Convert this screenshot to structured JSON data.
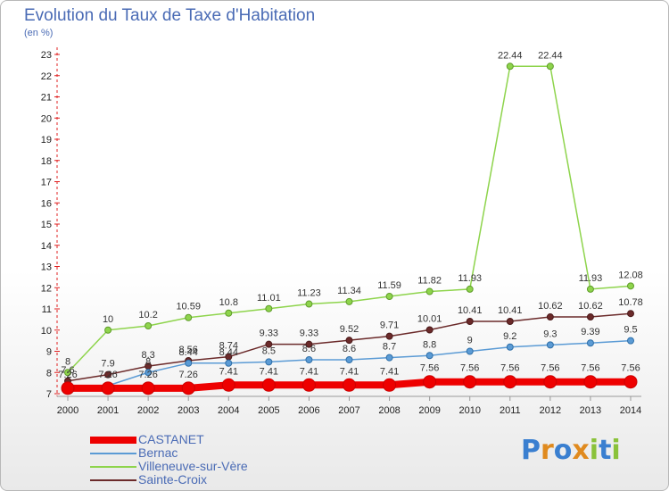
{
  "title": "Evolution du Taux de Taxe d'Habitation",
  "unit": "(en %)",
  "logo": {
    "letters": [
      "P",
      "r",
      "o",
      "x",
      "i",
      "t",
      "i"
    ],
    "colors": [
      "#3a7fd0",
      "#e08a1e",
      "#3a7fd0",
      "#e08a1e",
      "#8ac23a",
      "#3a7fd0",
      "#8ac23a"
    ]
  },
  "chart_data": {
    "type": "line",
    "title": "Evolution du Taux de Taxe d'Habitation",
    "ylabel": "(en %)",
    "xlabel": "",
    "x": [
      "2000",
      "2001",
      "2002",
      "2003",
      "2004",
      "2005",
      "2006",
      "2007",
      "2008",
      "2009",
      "2010",
      "2011",
      "2012",
      "2013",
      "2014"
    ],
    "ylim": [
      7,
      23
    ],
    "yticks": [
      "7",
      "8",
      "9",
      "10",
      "11",
      "12",
      "13",
      "14",
      "15",
      "16",
      "17",
      "18",
      "19",
      "20",
      "21",
      "22",
      "23"
    ],
    "legend_position": "bottom-left",
    "grid": false,
    "series": [
      {
        "name": "CASTANET",
        "color": "#ee0000",
        "values": [
          7.26,
          7.26,
          7.26,
          7.26,
          7.41,
          7.41,
          7.41,
          7.41,
          7.41,
          7.56,
          7.56,
          7.56,
          7.56,
          7.56,
          7.56
        ],
        "labels": [
          "7.26",
          "7.26",
          "7.26",
          "7.26",
          "7.41",
          "7.41",
          "7.41",
          "7.41",
          "7.41",
          "7.56",
          "7.56",
          "7.56",
          "7.56",
          "7.56",
          "7.56"
        ]
      },
      {
        "name": "Bernac",
        "color": "#5b9bd5",
        "values": [
          7.38,
          7.38,
          8.0,
          8.44,
          8.44,
          8.5,
          8.6,
          8.6,
          8.7,
          8.8,
          9.0,
          9.2,
          9.3,
          9.39,
          9.5
        ],
        "labels": [
          "",
          "",
          "8",
          "8.44",
          "8.44",
          "8.5",
          "8.6",
          "8.6",
          "8.7",
          "8.8",
          "9",
          "9.2",
          "9.3",
          "9.39",
          "9.5"
        ]
      },
      {
        "name": "Villeneuve-sur-Vère",
        "color": "#8ed44c",
        "values": [
          8.0,
          10.0,
          10.2,
          10.59,
          10.8,
          11.01,
          11.23,
          11.34,
          11.59,
          11.82,
          11.93,
          22.44,
          22.44,
          11.93,
          12.08
        ],
        "labels": [
          "8",
          "10",
          "10.2",
          "10.59",
          "10.8",
          "11.01",
          "11.23",
          "11.34",
          "11.59",
          "11.82",
          "11.93",
          "22.44",
          "22.44",
          "11.93",
          "12.08"
        ]
      },
      {
        "name": "Sainte-Croix",
        "color": "#6b2a2a",
        "values": [
          7.6,
          7.9,
          8.3,
          8.56,
          8.74,
          9.33,
          9.33,
          9.52,
          9.71,
          10.01,
          10.41,
          10.41,
          10.62,
          10.62,
          10.78
        ],
        "labels": [
          "7.6",
          "7.9",
          "8.3",
          "8.56",
          "8.74",
          "9.33",
          "9.33",
          "9.52",
          "9.71",
          "10.01",
          "10.41",
          "10.41",
          "10.62",
          "10.62",
          "10.78"
        ]
      }
    ]
  }
}
